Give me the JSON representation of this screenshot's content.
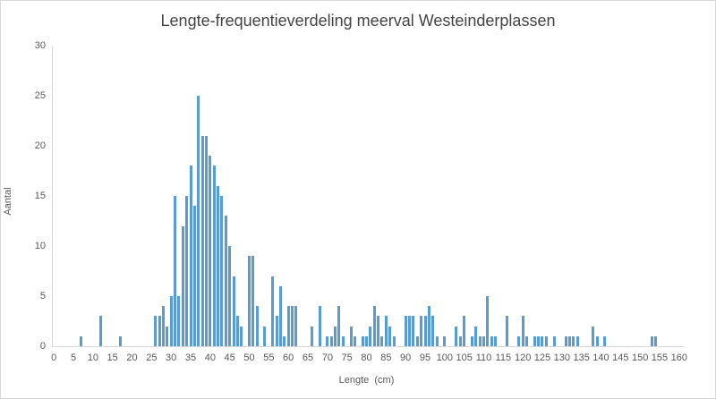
{
  "chart_data": {
    "type": "bar",
    "title": "Lengte-frequentieverdeling meerval Westeinderplassen",
    "xlabel": "Lengte  (cm)",
    "ylabel": "Aantal",
    "xlim": [
      0,
      160
    ],
    "ylim": [
      0,
      30
    ],
    "x_ticks": [
      0,
      5,
      10,
      15,
      20,
      25,
      30,
      35,
      40,
      45,
      50,
      55,
      60,
      65,
      70,
      75,
      80,
      85,
      90,
      95,
      100,
      105,
      110,
      115,
      120,
      125,
      130,
      135,
      140,
      145,
      150,
      155,
      160
    ],
    "y_ticks": [
      0,
      5,
      10,
      15,
      20,
      25,
      30
    ],
    "grid": "off",
    "legend": "none",
    "bar_color": "#5b9bd5",
    "axis_line_color": "#d9d9d9",
    "tick_text_color": "#595959",
    "title_color": "#444444",
    "points": [
      [
        7,
        1
      ],
      [
        12,
        3
      ],
      [
        17,
        1
      ],
      [
        26,
        3
      ],
      [
        27,
        3
      ],
      [
        28,
        4
      ],
      [
        29,
        2
      ],
      [
        30,
        5
      ],
      [
        31,
        15
      ],
      [
        32,
        5
      ],
      [
        33,
        12
      ],
      [
        34,
        15
      ],
      [
        35,
        18
      ],
      [
        36,
        14
      ],
      [
        37,
        25
      ],
      [
        38,
        21
      ],
      [
        39,
        21
      ],
      [
        40,
        19
      ],
      [
        41,
        18
      ],
      [
        42,
        16
      ],
      [
        43,
        15
      ],
      [
        44,
        13
      ],
      [
        45,
        10
      ],
      [
        46,
        7
      ],
      [
        47,
        3
      ],
      [
        48,
        2
      ],
      [
        50,
        9
      ],
      [
        51,
        9
      ],
      [
        52,
        4
      ],
      [
        54,
        2
      ],
      [
        56,
        7
      ],
      [
        57,
        3
      ],
      [
        58,
        6
      ],
      [
        59,
        1
      ],
      [
        60,
        4
      ],
      [
        61,
        4
      ],
      [
        62,
        4
      ],
      [
        66,
        2
      ],
      [
        68,
        4
      ],
      [
        70,
        1
      ],
      [
        71,
        1
      ],
      [
        72,
        2
      ],
      [
        73,
        4
      ],
      [
        74,
        1
      ],
      [
        76,
        2
      ],
      [
        77,
        1
      ],
      [
        79,
        1
      ],
      [
        80,
        1
      ],
      [
        81,
        2
      ],
      [
        82,
        4
      ],
      [
        83,
        3
      ],
      [
        84,
        1
      ],
      [
        85,
        3
      ],
      [
        86,
        2
      ],
      [
        87,
        1
      ],
      [
        90,
        3
      ],
      [
        91,
        3
      ],
      [
        92,
        3
      ],
      [
        93,
        1
      ],
      [
        94,
        3
      ],
      [
        95,
        3
      ],
      [
        96,
        4
      ],
      [
        97,
        3
      ],
      [
        98,
        1
      ],
      [
        100,
        1
      ],
      [
        103,
        2
      ],
      [
        104,
        1
      ],
      [
        105,
        3
      ],
      [
        107,
        1
      ],
      [
        108,
        2
      ],
      [
        109,
        1
      ],
      [
        110,
        1
      ],
      [
        111,
        5
      ],
      [
        112,
        1
      ],
      [
        113,
        1
      ],
      [
        116,
        3
      ],
      [
        119,
        1
      ],
      [
        120,
        3
      ],
      [
        121,
        1
      ],
      [
        123,
        1
      ],
      [
        124,
        1
      ],
      [
        125,
        1
      ],
      [
        126,
        1
      ],
      [
        128,
        1
      ],
      [
        131,
        1
      ],
      [
        132,
        1
      ],
      [
        133,
        1
      ],
      [
        134,
        1
      ],
      [
        138,
        2
      ],
      [
        139,
        1
      ],
      [
        141,
        1
      ],
      [
        153,
        1
      ],
      [
        154,
        1
      ]
    ]
  }
}
